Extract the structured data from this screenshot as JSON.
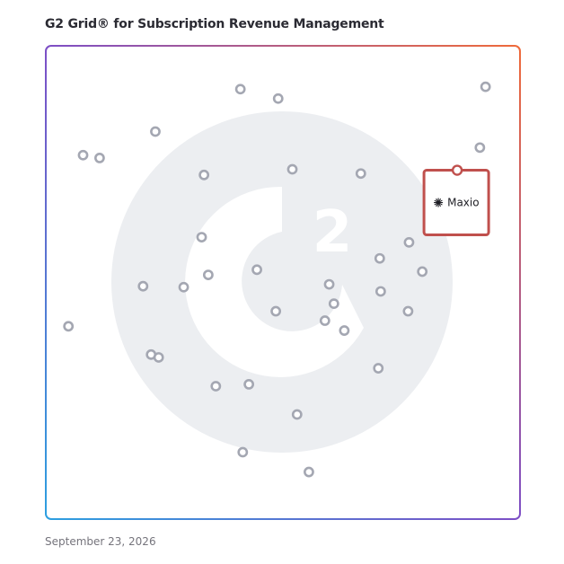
{
  "header": {
    "title": "G2 Grid® for Subscription Revenue Management"
  },
  "footer": {
    "date": "September 23, 2026"
  },
  "colors": {
    "dot": "#a4a7b2",
    "highlight": "#c0504d",
    "watermark": "#eceef1",
    "border_start": "#2d9fe0",
    "border_mid": "#7d4fc6",
    "border_end": "#ef6a3a"
  },
  "chart_data": {
    "type": "scatter",
    "title": "G2 Grid® for Subscription Revenue Management",
    "xlabel": "",
    "ylabel": "",
    "xlim": [
      0,
      100
    ],
    "ylim": [
      0,
      100
    ],
    "grid": "quadrants",
    "dividers": {
      "x": 50,
      "y": 50
    },
    "points": [
      {
        "x": 41.0,
        "y": 91.0
      },
      {
        "x": 49.0,
        "y": 89.0
      },
      {
        "x": 92.9,
        "y": 91.5
      },
      {
        "x": 91.7,
        "y": 78.6
      },
      {
        "x": 23.0,
        "y": 82.0
      },
      {
        "x": 7.7,
        "y": 77.0
      },
      {
        "x": 11.2,
        "y": 76.4
      },
      {
        "x": 33.3,
        "y": 72.8
      },
      {
        "x": 52.0,
        "y": 74.0
      },
      {
        "x": 66.5,
        "y": 73.1
      },
      {
        "x": 32.8,
        "y": 59.6
      },
      {
        "x": 76.7,
        "y": 58.5
      },
      {
        "x": 70.5,
        "y": 55.1
      },
      {
        "x": 34.2,
        "y": 51.6
      },
      {
        "x": 44.5,
        "y": 52.7
      },
      {
        "x": 79.5,
        "y": 52.3
      },
      {
        "x": 20.4,
        "y": 49.2
      },
      {
        "x": 29.0,
        "y": 49.0
      },
      {
        "x": 59.8,
        "y": 49.6
      },
      {
        "x": 70.7,
        "y": 48.1
      },
      {
        "x": 60.8,
        "y": 45.5
      },
      {
        "x": 48.5,
        "y": 43.9
      },
      {
        "x": 58.9,
        "y": 41.9
      },
      {
        "x": 76.5,
        "y": 43.9
      },
      {
        "x": 63.0,
        "y": 39.8
      },
      {
        "x": 4.6,
        "y": 40.7
      },
      {
        "x": 22.1,
        "y": 34.7
      },
      {
        "x": 23.7,
        "y": 34.1
      },
      {
        "x": 70.2,
        "y": 31.8
      },
      {
        "x": 35.8,
        "y": 28.0
      },
      {
        "x": 42.8,
        "y": 28.4
      },
      {
        "x": 53.0,
        "y": 22.0
      },
      {
        "x": 41.5,
        "y": 14.0
      },
      {
        "x": 55.5,
        "y": 9.8
      }
    ],
    "highlight": {
      "label": "Maxio",
      "x": 86.9,
      "y": 73.8,
      "icon": "maxio-asterisk-icon"
    }
  }
}
